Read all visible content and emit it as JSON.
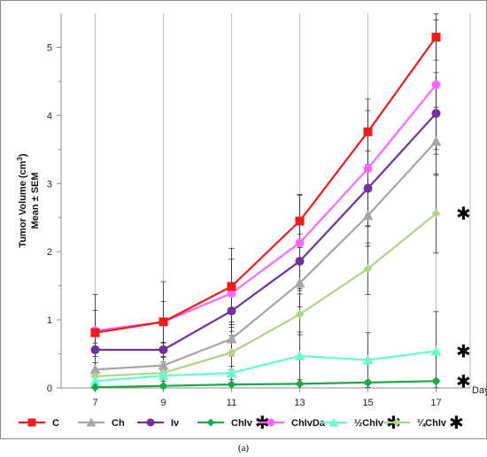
{
  "chart_data": {
    "type": "line",
    "x": [
      7,
      9,
      11,
      13,
      15,
      17
    ],
    "x_unit_label": "Day",
    "ylabel_line1_prefix": "Tumor Volume (cm",
    "ylabel_line1_sup": "3",
    "ylabel_line1_suffix": ")",
    "ylabel_line2": "Mean ± SEM",
    "ylim": [
      0,
      5.5
    ],
    "yticks": [
      0,
      1,
      2,
      3,
      4,
      5
    ],
    "grid": "vertical",
    "legend_position": "bottom",
    "series": [
      {
        "name": "C",
        "color": "#ee1c1c",
        "marker": "square",
        "values": [
          0.81,
          0.97,
          1.49,
          2.45,
          3.76,
          5.15
        ],
        "err": [
          0.56,
          0.59,
          0.56,
          0.39,
          0.48,
          0.34
        ],
        "asterisk": false
      },
      {
        "name": "Ch",
        "color": "#a6a6a6",
        "marker": "triangle",
        "values": [
          0.27,
          0.33,
          0.72,
          1.54,
          2.53,
          3.62
        ],
        "err": [
          0.1,
          0.12,
          0.25,
          0.35,
          0.45,
          0.5
        ],
        "asterisk": false
      },
      {
        "name": "Iv",
        "color": "#7030a0",
        "marker": "circle",
        "values": [
          0.56,
          0.56,
          1.13,
          1.86,
          2.93,
          4.03
        ],
        "err": [
          0.1,
          0.1,
          0.3,
          0.4,
          0.55,
          0.6
        ],
        "asterisk": false
      },
      {
        "name": "ChIv",
        "color": "#1aa84a",
        "marker": "diamond",
        "values": [
          0.01,
          0.03,
          0.05,
          0.06,
          0.08,
          0.1
        ],
        "err": [
          0.01,
          0.01,
          0.02,
          0.02,
          0.03,
          0.03
        ],
        "asterisk": true
      },
      {
        "name": "ChIvDa",
        "color": "#ff66ff",
        "marker": "circle",
        "values": [
          0.84,
          0.97,
          1.39,
          2.13,
          3.22,
          4.45
        ],
        "err": [
          0.3,
          0.3,
          0.5,
          0.7,
          0.85,
          0.95
        ],
        "asterisk": false
      },
      {
        "name": "½ChIv",
        "color": "#66ffcc",
        "marker": "triangle",
        "values": [
          0.1,
          0.18,
          0.22,
          0.47,
          0.41,
          0.54
        ],
        "err": [
          0.06,
          0.08,
          0.1,
          0.35,
          0.4,
          0.58
        ],
        "asterisk": true
      },
      {
        "name": "¼ChIv",
        "color": "#b3d38b",
        "marker": "diamond",
        "values": [
          0.17,
          0.22,
          0.52,
          1.08,
          1.75,
          2.56
        ],
        "err": [
          0.1,
          0.1,
          0.25,
          0.3,
          0.38,
          0.58
        ],
        "asterisk": true
      }
    ],
    "star_symbol": "✱"
  },
  "caption": "(a)"
}
